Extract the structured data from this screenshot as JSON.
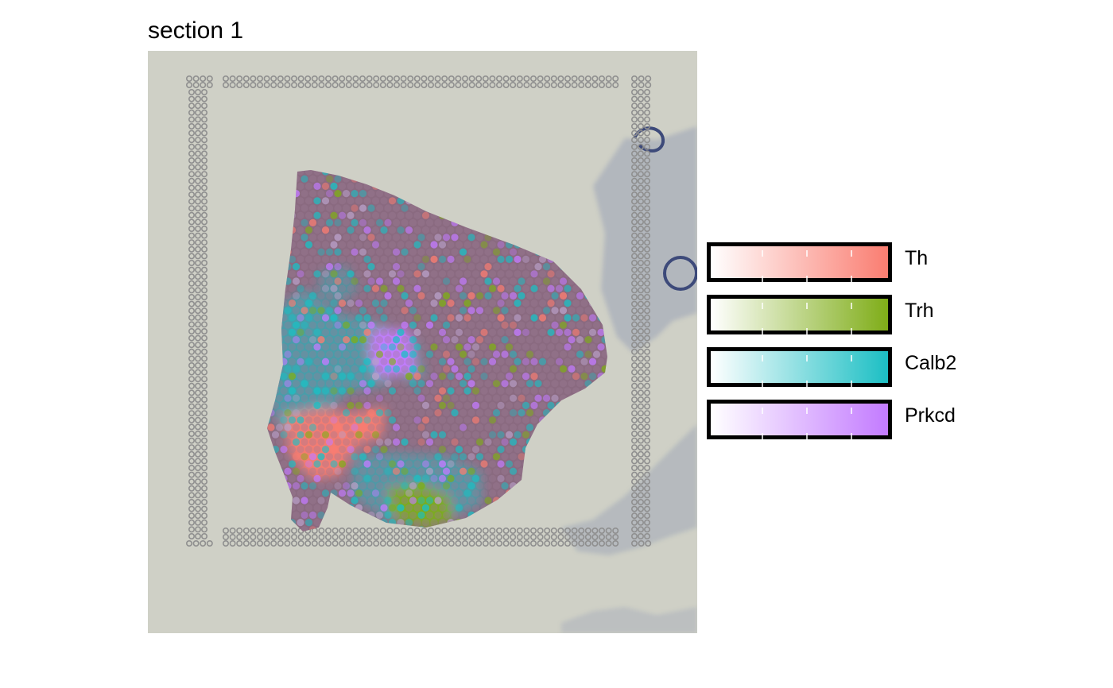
{
  "plot": {
    "title": "section 1",
    "background_color": "#cfd0c6",
    "tissue_color": "#8a6a80",
    "fiducial_color": "#8f8f8f",
    "stain_color": "#7b86ab"
  },
  "legend": {
    "items": [
      {
        "gene": "Th",
        "color": "#fa7d71"
      },
      {
        "gene": "Trh",
        "color": "#7fad18"
      },
      {
        "gene": "Calb2",
        "color": "#1cbfc4"
      },
      {
        "gene": "Prkcd",
        "color": "#c37bff"
      }
    ]
  }
}
